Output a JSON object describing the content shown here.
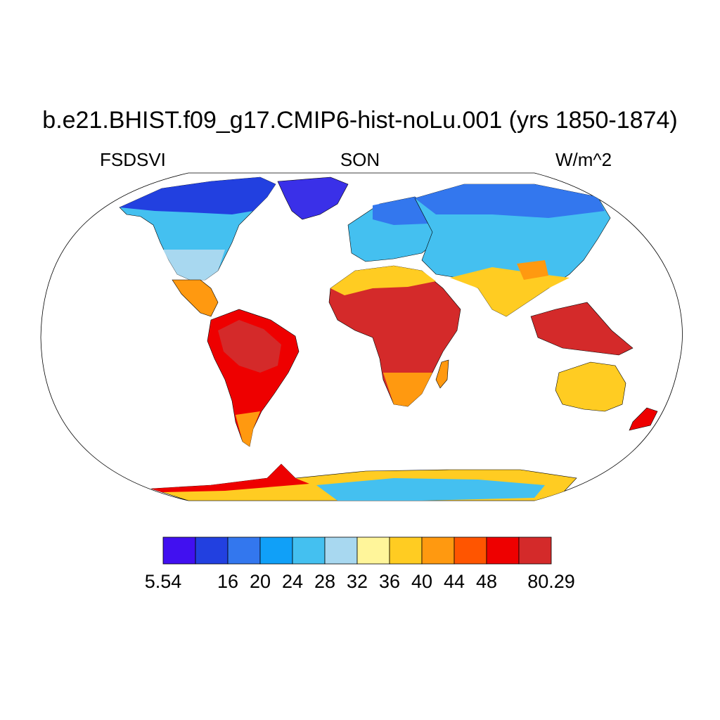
{
  "title": "b.e21.BHIST.f09_g17.CMIP6-hist-noLu.001 (yrs 1850-1874)",
  "left_label": "FSDSVI",
  "center_label": "SON",
  "right_label": "W/m^2",
  "colorbar": {
    "colors": [
      "#4110f0",
      "#2240e0",
      "#3377ee",
      "#10a0f8",
      "#44c0f0",
      "#a8d8f0",
      "#fff59a",
      "#ffcc22",
      "#ff9910",
      "#ff5500",
      "#ee0000",
      "#d42a2a"
    ],
    "labels": [
      "5.54",
      "",
      "16",
      "20",
      "24",
      "28",
      "32",
      "36",
      "40",
      "44",
      "48",
      "",
      "80.29"
    ]
  },
  "map": {
    "projection": "Robinson",
    "land_colors": {
      "polar": "#3a30e8",
      "high_lat": "#3377ee",
      "mid_lat": "#44c0f0",
      "temperate": "#a8d8f0",
      "subtropic": "#ffcc22",
      "warm": "#ff9910",
      "hot": "#ee0000",
      "hottest": "#d42a2a",
      "antarctic_interior": "#44c0f0"
    }
  }
}
